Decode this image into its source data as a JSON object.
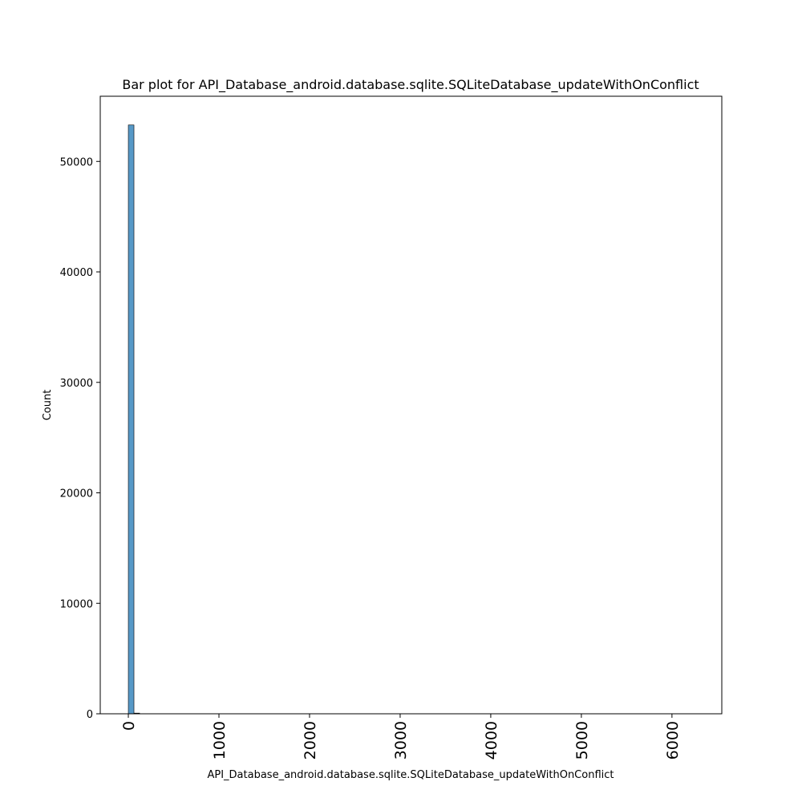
{
  "chart_data": {
    "type": "bar",
    "title": "Bar plot for API_Database_android.database.sqlite.SQLiteDatabase_updateWithOnConflict",
    "xlabel": "API_Database_android.database.sqlite.SQLiteDatabase_updateWithOnConflict",
    "ylabel": "Count",
    "xlim": [
      -310,
      6550
    ],
    "ylim": [
      0,
      55900
    ],
    "xticks": [
      0,
      1000,
      2000,
      3000,
      4000,
      5000,
      6000
    ],
    "xtick_labels": [
      "0",
      "1000",
      "2000",
      "3000",
      "4000",
      "5000",
      "6000"
    ],
    "yticks": [
      0,
      10000,
      20000,
      30000,
      40000,
      50000
    ],
    "ytick_labels": [
      "0",
      "10000",
      "20000",
      "30000",
      "40000",
      "50000"
    ],
    "bin_width": 62,
    "bins": [
      {
        "x0": 0,
        "x1": 62,
        "value": 53300
      },
      {
        "x0": 62,
        "x1": 124,
        "value": 60
      }
    ],
    "bar_color": "#1f77b4",
    "bar_alpha": 0.75,
    "grid": false,
    "legend": "none"
  }
}
